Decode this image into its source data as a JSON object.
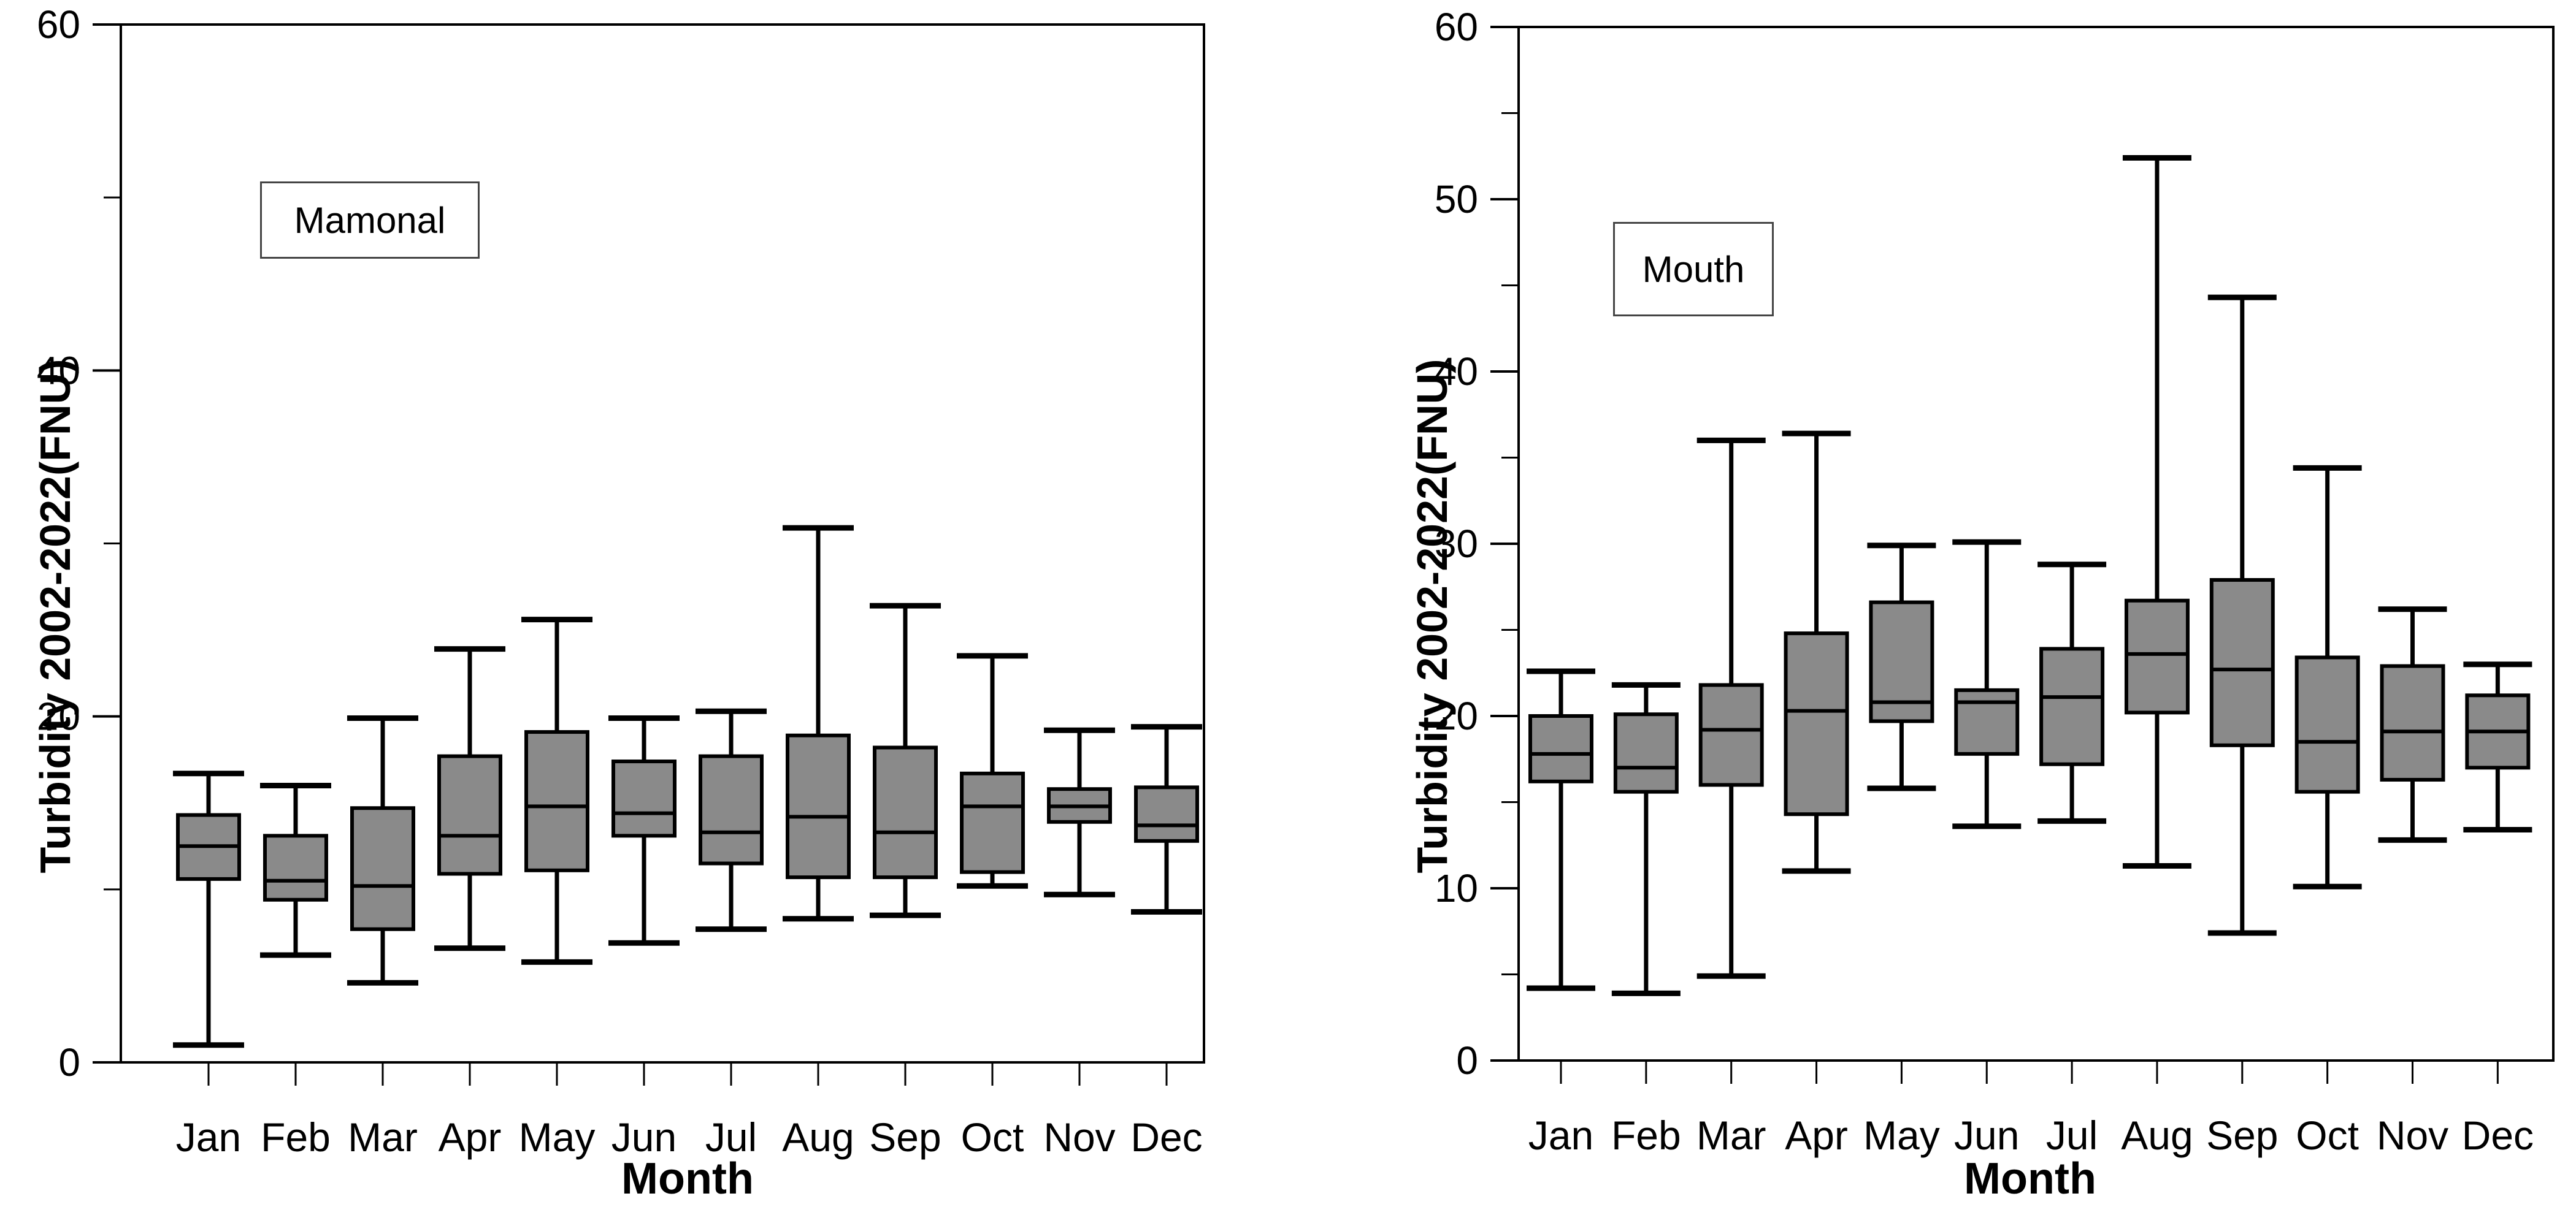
{
  "figure": {
    "background": "#ffffff",
    "box_fill": "#8a8a8a",
    "line_color": "#000000"
  },
  "chart_data": [
    {
      "type": "box",
      "panel_label": "Mamonal",
      "ylabel": "Turbidity 2002-2022(FNU)",
      "xlabel": "Month",
      "ylim": [
        0,
        60
      ],
      "ytick_labeled": [
        0,
        20,
        40,
        60
      ],
      "ytick_minor": [
        10,
        30,
        50
      ],
      "grid": false,
      "categories": [
        "Jan",
        "Feb",
        "Mar",
        "Apr",
        "May",
        "Jun",
        "Jul",
        "Aug",
        "Sep",
        "Oct",
        "Nov",
        "Dec"
      ],
      "boxes": [
        {
          "month": "Jan",
          "min": 1.0,
          "q1": 10.6,
          "median": 12.5,
          "q3": 14.3,
          "max": 16.7
        },
        {
          "month": "Feb",
          "min": 6.2,
          "q1": 9.4,
          "median": 10.5,
          "q3": 13.1,
          "max": 16.0
        },
        {
          "month": "Mar",
          "min": 4.6,
          "q1": 7.7,
          "median": 10.2,
          "q3": 14.7,
          "max": 19.9
        },
        {
          "month": "Apr",
          "min": 6.6,
          "q1": 10.9,
          "median": 13.1,
          "q3": 17.7,
          "max": 23.9
        },
        {
          "month": "May",
          "min": 5.8,
          "q1": 11.1,
          "median": 14.8,
          "q3": 19.1,
          "max": 25.6
        },
        {
          "month": "Jun",
          "min": 6.9,
          "q1": 13.1,
          "median": 14.4,
          "q3": 17.4,
          "max": 19.9
        },
        {
          "month": "Jul",
          "min": 7.7,
          "q1": 11.5,
          "median": 13.3,
          "q3": 17.7,
          "max": 20.3
        },
        {
          "month": "Aug",
          "min": 8.3,
          "q1": 10.7,
          "median": 14.2,
          "q3": 18.9,
          "max": 30.9
        },
        {
          "month": "Sep",
          "min": 8.5,
          "q1": 10.7,
          "median": 13.3,
          "q3": 18.2,
          "max": 26.4
        },
        {
          "month": "Oct",
          "min": 10.2,
          "q1": 11.0,
          "median": 14.8,
          "q3": 16.7,
          "max": 23.5
        },
        {
          "month": "Nov",
          "min": 9.7,
          "q1": 13.9,
          "median": 14.8,
          "q3": 15.8,
          "max": 19.2
        },
        {
          "month": "Dec",
          "min": 8.7,
          "q1": 12.8,
          "median": 13.7,
          "q3": 15.9,
          "max": 19.4
        }
      ]
    },
    {
      "type": "box",
      "panel_label": "Mouth",
      "ylabel": "Turbidity 2002-2022(FNU)",
      "xlabel": "Month",
      "ylim": [
        0,
        60
      ],
      "ytick_labeled": [
        0,
        10,
        20,
        30,
        40,
        50,
        60
      ],
      "ytick_minor": [
        5,
        15,
        25,
        35,
        45,
        55
      ],
      "grid": false,
      "categories": [
        "Jan",
        "Feb",
        "Mar",
        "Apr",
        "May",
        "Jun",
        "Jul",
        "Aug",
        "Sep",
        "Oct",
        "Nov",
        "Dec"
      ],
      "boxes": [
        {
          "month": "Jan",
          "min": 4.2,
          "q1": 16.2,
          "median": 17.8,
          "q3": 20.0,
          "max": 22.6
        },
        {
          "month": "Feb",
          "min": 3.9,
          "q1": 15.6,
          "median": 17.0,
          "q3": 20.1,
          "max": 21.8
        },
        {
          "month": "Mar",
          "min": 4.9,
          "q1": 16.0,
          "median": 19.2,
          "q3": 21.8,
          "max": 36.0
        },
        {
          "month": "Apr",
          "min": 11.0,
          "q1": 14.3,
          "median": 20.3,
          "q3": 24.8,
          "max": 36.4
        },
        {
          "month": "May",
          "min": 15.8,
          "q1": 19.7,
          "median": 20.8,
          "q3": 26.6,
          "max": 29.9
        },
        {
          "month": "Jun",
          "min": 13.6,
          "q1": 17.8,
          "median": 20.8,
          "q3": 21.5,
          "max": 30.1
        },
        {
          "month": "Jul",
          "min": 13.9,
          "q1": 17.2,
          "median": 21.1,
          "q3": 23.9,
          "max": 28.8
        },
        {
          "month": "Aug",
          "min": 11.3,
          "q1": 20.2,
          "median": 23.6,
          "q3": 26.7,
          "max": 52.4
        },
        {
          "month": "Sep",
          "min": 7.4,
          "q1": 18.3,
          "median": 22.7,
          "q3": 27.9,
          "max": 44.3
        },
        {
          "month": "Oct",
          "min": 10.1,
          "q1": 15.6,
          "median": 18.5,
          "q3": 23.4,
          "max": 34.4
        },
        {
          "month": "Nov",
          "min": 12.8,
          "q1": 16.3,
          "median": 19.1,
          "q3": 22.9,
          "max": 26.2
        },
        {
          "month": "Dec",
          "min": 13.4,
          "q1": 17.0,
          "median": 19.1,
          "q3": 21.2,
          "max": 23.0
        }
      ]
    }
  ]
}
